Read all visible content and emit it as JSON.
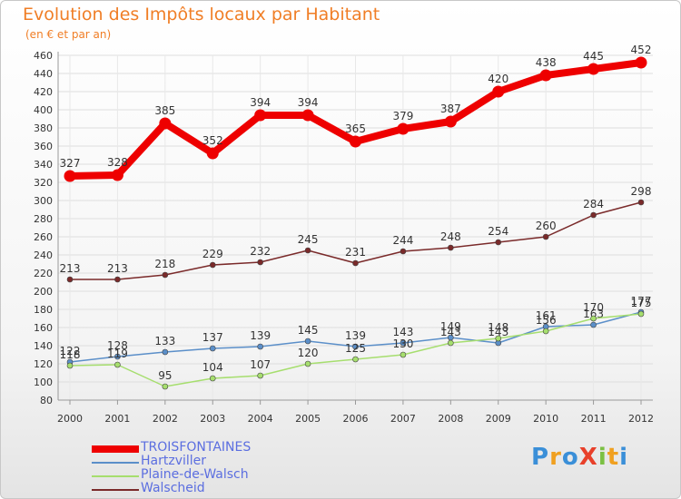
{
  "title": "Evolution des Impôts locaux par Habitant",
  "subtitle": "(en € et par an)",
  "logo": "ProXiti",
  "chart_data": {
    "type": "line",
    "title": "Evolution des Impôts locaux par Habitant",
    "ylabel": "(en € et par an)",
    "xlabel": "",
    "ylim": [
      80,
      460
    ],
    "yticks": [
      80,
      100,
      120,
      140,
      160,
      180,
      200,
      220,
      240,
      260,
      280,
      300,
      320,
      340,
      360,
      380,
      400,
      420,
      440,
      460
    ],
    "categories": [
      "2000",
      "2001",
      "2002",
      "2003",
      "2004",
      "2005",
      "2006",
      "2007",
      "2008",
      "2009",
      "2010",
      "2011",
      "2012"
    ],
    "grid": true,
    "legend_position": "bottom-left",
    "series": [
      {
        "name": "TROISFONTAINES",
        "color": "#ee0000",
        "emphasis": true,
        "values": [
          327,
          328,
          385,
          352,
          394,
          394,
          365,
          379,
          387,
          420,
          438,
          445,
          452
        ]
      },
      {
        "name": "Hartzviller",
        "color": "#5b8fc9",
        "values": [
          122,
          128,
          133,
          137,
          139,
          145,
          139,
          143,
          149,
          143,
          161,
          163,
          177
        ]
      },
      {
        "name": "Plaine-de-Walsch",
        "color": "#a6de6e",
        "values": [
          118,
          119,
          95,
          104,
          107,
          120,
          125,
          130,
          143,
          148,
          156,
          170,
          175
        ]
      },
      {
        "name": "Walscheid",
        "color": "#7a2a2a",
        "values": [
          213,
          213,
          218,
          229,
          232,
          245,
          231,
          244,
          248,
          254,
          260,
          284,
          298
        ]
      }
    ]
  }
}
